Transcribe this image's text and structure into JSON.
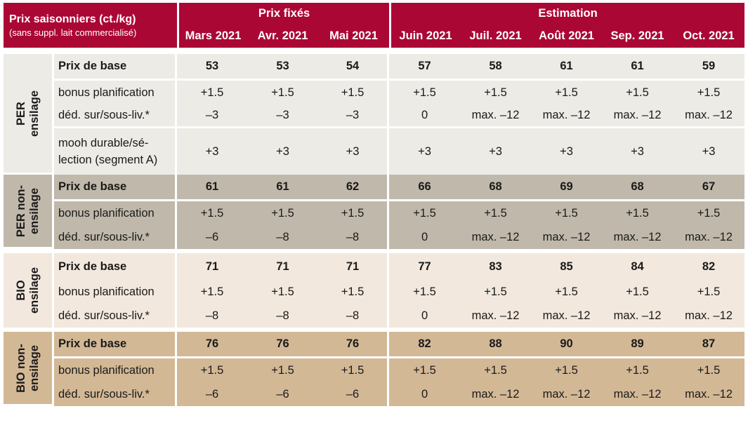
{
  "header": {
    "title": "Prix saisonniers (ct./kg)",
    "subtitle": "(sans suppl. lait commercialisé)",
    "group_fixed": "Prix fixés",
    "group_estimate": "Estimation",
    "months": [
      "Mars 2021",
      "Avr. 2021",
      "Mai 2021",
      "Juin 2021",
      "Juil. 2021",
      "Août 2021",
      "Sep. 2021",
      "Oct. 2021"
    ]
  },
  "groups": [
    {
      "label": [
        "PER",
        "ensilage"
      ],
      "rows": [
        {
          "label": "Prix de base",
          "values": [
            "53",
            "53",
            "54",
            "57",
            "58",
            "61",
            "61",
            "59"
          ]
        },
        {
          "label": "bonus planification",
          "values": [
            "+1.5",
            "+1.5",
            "+1.5",
            "+1.5",
            "+1.5",
            "+1.5",
            "+1.5",
            "+1.5"
          ]
        },
        {
          "label": "déd. sur/sous-liv.*",
          "values": [
            "–3",
            "–3",
            "–3",
            "0",
            "max. –12",
            "max. –12",
            "max. –12",
            "max. –12"
          ]
        },
        {
          "label": "mooh durable/sé-lection (segment A)",
          "label_lines": [
            "mooh durable/sé-",
            "lection (segment A)"
          ],
          "values": [
            "+3",
            "+3",
            "+3",
            "+3",
            "+3",
            "+3",
            "+3",
            "+3"
          ]
        }
      ]
    },
    {
      "label": [
        "PER non-",
        "ensilage"
      ],
      "rows": [
        {
          "label": "Prix de base",
          "values": [
            "61",
            "61",
            "62",
            "66",
            "68",
            "69",
            "68",
            "67"
          ]
        },
        {
          "label": "bonus planification",
          "values": [
            "+1.5",
            "+1.5",
            "+1.5",
            "+1.5",
            "+1.5",
            "+1.5",
            "+1.5",
            "+1.5"
          ]
        },
        {
          "label": "déd. sur/sous-liv.*",
          "values": [
            "–6",
            "–8",
            "–8",
            "0",
            "max. –12",
            "max. –12",
            "max. –12",
            "max. –12"
          ]
        }
      ]
    },
    {
      "label": [
        "BIO",
        "ensilage"
      ],
      "rows": [
        {
          "label": "Prix de base",
          "values": [
            "71",
            "71",
            "71",
            "77",
            "83",
            "85",
            "84",
            "82"
          ]
        },
        {
          "label": "bonus planification",
          "values": [
            "+1.5",
            "+1.5",
            "+1.5",
            "+1.5",
            "+1.5",
            "+1.5",
            "+1.5",
            "+1.5"
          ]
        },
        {
          "label": "déd. sur/sous-liv.*",
          "values": [
            "–8",
            "–8",
            "–8",
            "0",
            "max. –12",
            "max. –12",
            "max. –12",
            "max. –12"
          ]
        }
      ]
    },
    {
      "label": [
        "BIO non-",
        "ensilage"
      ],
      "rows": [
        {
          "label": "Prix de base",
          "values": [
            "76",
            "76",
            "76",
            "82",
            "88",
            "90",
            "89",
            "87"
          ]
        },
        {
          "label": "bonus planification",
          "values": [
            "+1.5",
            "+1.5",
            "+1.5",
            "+1.5",
            "+1.5",
            "+1.5",
            "+1.5",
            "+1.5"
          ]
        },
        {
          "label": "déd. sur/sous-liv.*",
          "values": [
            "–6",
            "–6",
            "–6",
            "0",
            "max. –12",
            "max. –12",
            "max. –12",
            "max. –12"
          ]
        }
      ]
    }
  ]
}
